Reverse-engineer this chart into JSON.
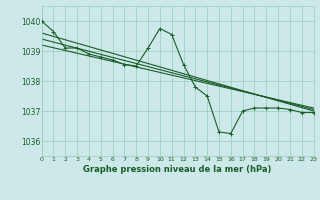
{
  "background_color": "#cce8e8",
  "grid_color": "#99ccbb",
  "line_color": "#1a5c2a",
  "title": "Graphe pression niveau de la mer (hPa)",
  "xlim": [
    0,
    23
  ],
  "ylim": [
    1035.5,
    1040.5
  ],
  "yticks": [
    1036,
    1037,
    1038,
    1039,
    1040
  ],
  "xticks": [
    0,
    1,
    2,
    3,
    4,
    5,
    6,
    7,
    8,
    9,
    10,
    11,
    12,
    13,
    14,
    15,
    16,
    17,
    18,
    19,
    20,
    21,
    22,
    23
  ],
  "series1_x": [
    0,
    1,
    2,
    3,
    4,
    5,
    6,
    7,
    8,
    9,
    10,
    11,
    12,
    13,
    14,
    15,
    16,
    17,
    18,
    19,
    20,
    21,
    22,
    23
  ],
  "series1_y": [
    1040.0,
    1039.65,
    1039.1,
    1039.1,
    1038.9,
    1038.8,
    1038.7,
    1038.55,
    1038.5,
    1039.1,
    1039.75,
    1039.55,
    1038.55,
    1037.8,
    1037.5,
    1036.3,
    1036.25,
    1037.0,
    1037.1,
    1037.1,
    1037.1,
    1037.05,
    1036.95,
    1036.95
  ],
  "series2_x": [
    0,
    23
  ],
  "series2_y": [
    1039.6,
    1037.0
  ],
  "series3_x": [
    0,
    23
  ],
  "series3_y": [
    1039.4,
    1037.05
  ],
  "series4_x": [
    0,
    23
  ],
  "series4_y": [
    1039.2,
    1037.1
  ],
  "figwidth": 3.2,
  "figheight": 2.0,
  "dpi": 100
}
